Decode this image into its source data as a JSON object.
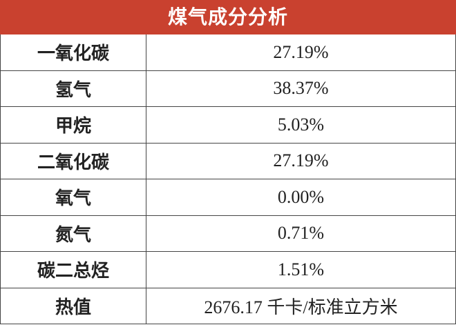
{
  "table": {
    "title": "煤气成分分析",
    "rows": [
      [
        "一氧化碳",
        "27.19%"
      ],
      [
        "氢气",
        "38.37%"
      ],
      [
        "甲烷",
        "5.03%"
      ],
      [
        "二氧化碳",
        "27.19%"
      ],
      [
        "氧气",
        "0.00%"
      ],
      [
        "氮气",
        "0.71%"
      ],
      [
        "碳二总烃",
        "1.51%"
      ],
      [
        "热值",
        "2676.17 千卡/标准立方米"
      ]
    ]
  }
}
